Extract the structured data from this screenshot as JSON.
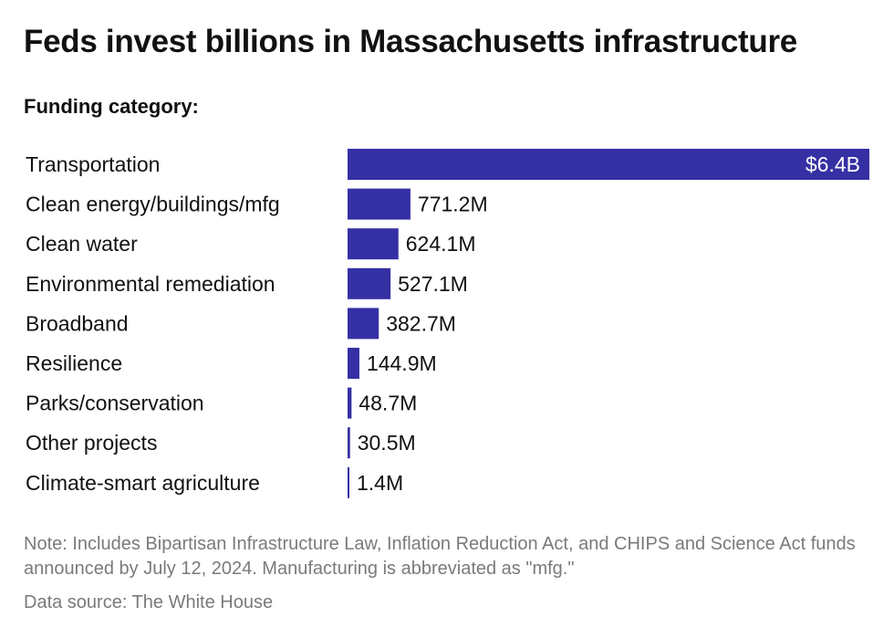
{
  "title": "Feds invest billions in Massachusetts infrastructure",
  "subtitle": "Funding category:",
  "note": "Note: Includes Bipartisan Infrastructure Law, Inflation Reduction Act, and CHIPS and Science Act funds announced by July 12, 2024. Manufacturing is abbreviated as \"mfg.\"",
  "source": "Data source: The White House",
  "colors": {
    "bar": "#3530a4",
    "label_inside": "#ffffff",
    "label_outside": "#111111"
  },
  "chart_data": {
    "type": "bar",
    "orientation": "horizontal",
    "title": "Feds invest billions in Massachusetts infrastructure",
    "categories": [
      "Transportation",
      "Clean energy/buildings/mfg",
      "Clean water",
      "Environmental remediation",
      "Broadband",
      "Resilience",
      "Parks/conservation",
      "Other projects",
      "Climate-smart agriculture"
    ],
    "values": [
      6400,
      771.2,
      624.1,
      527.1,
      382.7,
      144.9,
      48.7,
      30.5,
      1.4
    ],
    "unit": "million dollars",
    "labels": [
      "$6.4B",
      "771.2M",
      "624.1M",
      "527.1M",
      "382.7M",
      "144.9M",
      "48.7M",
      "30.5M",
      "1.4M"
    ],
    "grid": false,
    "legend": "none"
  }
}
